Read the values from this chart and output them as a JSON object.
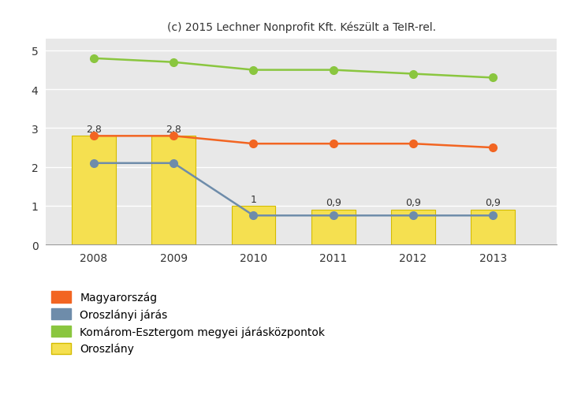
{
  "years": [
    2008,
    2009,
    2010,
    2011,
    2012,
    2013
  ],
  "magyarorszag": [
    2.8,
    2.8,
    2.6,
    2.6,
    2.6,
    2.5
  ],
  "oroszlanyi_jaras": [
    2.1,
    2.1,
    0.75,
    0.75,
    0.75,
    0.75
  ],
  "komarom_esztergom": [
    4.8,
    4.7,
    4.5,
    4.5,
    4.4,
    4.3
  ],
  "oroszlany_bars": [
    2.8,
    2.8,
    1.0,
    0.9,
    0.9,
    0.9
  ],
  "bar_labels": [
    "2,8",
    "2,8",
    "1",
    "0,9",
    "0,9",
    "0,9"
  ],
  "bar_color": "#f5e050",
  "bar_edgecolor": "#d4bc00",
  "magyarorszag_color": "#f26522",
  "oroszlanyi_color": "#6e8caa",
  "komarom_color": "#8ac63f",
  "title": "(c) 2015 Lechner Nonprofit Kft. Készült a TeIR-rel.",
  "title_fontsize": 10,
  "ylim": [
    0,
    5.3
  ],
  "yticks": [
    0,
    1,
    2,
    3,
    4,
    5
  ],
  "legend_labels": [
    "Magyarország",
    "Oroszlányi járás",
    "Komárom-Esztergom megyei járásközpontok",
    "Oroszlány"
  ],
  "figure_bg_color": "#ffffff",
  "plot_bg_color": "#e8e8e8"
}
